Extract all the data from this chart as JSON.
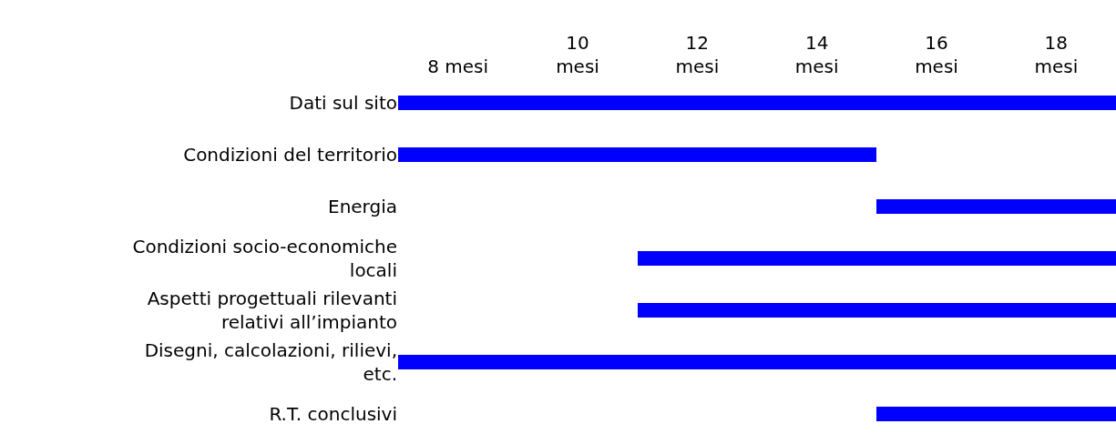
{
  "chart_data": {
    "type": "bar",
    "orientation": "horizontal",
    "categories": [
      "Dati sul sito",
      "Condizioni del territorio",
      "Energia",
      "Condizioni socio-economiche\nlocali",
      "Aspetti progettuali rilevanti\nrelativi all’impianto",
      "Disegni, calcolazioni, rilievi,\netc.",
      "R.T. conclusivi"
    ],
    "base": [
      7,
      7,
      15,
      11,
      11,
      7,
      15
    ],
    "values": [
      12,
      8,
      4,
      8,
      8,
      12,
      4
    ],
    "color": "#0000ff",
    "xlim": [
      7,
      19
    ],
    "xticks": [
      {
        "value": 8,
        "label": "8 mesi"
      },
      {
        "value": 10,
        "label": "10\nmesi"
      },
      {
        "value": 12,
        "label": "12\nmesi"
      },
      {
        "value": 14,
        "label": "14\nmesi"
      },
      {
        "value": 16,
        "label": "16\nmesi"
      },
      {
        "value": 18,
        "label": "18\nmesi"
      }
    ]
  }
}
